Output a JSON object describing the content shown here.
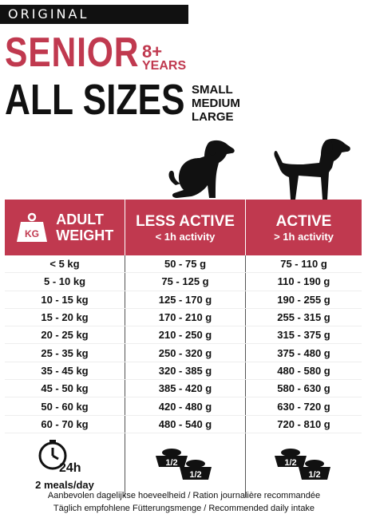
{
  "header": {
    "badge": "ORIGINAL",
    "title": "SENIOR",
    "age_number": "8+",
    "age_label": "YEARS",
    "subtitle": "ALL SIZES",
    "sizes": [
      "SMALL",
      "MEDIUM",
      "LARGE"
    ]
  },
  "colors": {
    "accent": "#c0394f",
    "dark": "#111111"
  },
  "table": {
    "columns": [
      {
        "title_line1": "ADULT",
        "title_line2": "WEIGHT",
        "icon": "kg-weight-icon",
        "icon_text": "KG"
      },
      {
        "title": "LESS ACTIVE",
        "sub": "< 1h activity"
      },
      {
        "title": "ACTIVE",
        "sub": "> 1h activity"
      }
    ],
    "rows": [
      [
        "< 5 kg",
        "50 - 75 g",
        "75 - 110 g"
      ],
      [
        "5 - 10 kg",
        "75 - 125 g",
        "110 - 190 g"
      ],
      [
        "10 - 15 kg",
        "125 - 170 g",
        "190 - 255 g"
      ],
      [
        "15 - 20 kg",
        "170 - 210 g",
        "255 - 315 g"
      ],
      [
        "20 - 25 kg",
        "210 - 250 g",
        "315 - 375 g"
      ],
      [
        "25 - 35 kg",
        "250 - 320 g",
        "375 - 480 g"
      ],
      [
        "35 - 45 kg",
        "320 - 385 g",
        "480 - 580 g"
      ],
      [
        "45 - 50 kg",
        "385 - 420 g",
        "580 - 630 g"
      ],
      [
        "50 - 60 kg",
        "420 - 480 g",
        "630 - 720 g"
      ],
      [
        "60 - 70 kg",
        "480 - 540 g",
        "720 - 810 g"
      ]
    ],
    "footer": {
      "clock_label": "24h",
      "meals": "2 meals/day",
      "bowl_label": "1/2"
    }
  },
  "note_line1": "Aanbevolen dagelijkse hoeveelheid / Ration journalière recommandée",
  "note_line2": "Täglich empfohlene Fütterungsmenge / Recommended daily intake"
}
